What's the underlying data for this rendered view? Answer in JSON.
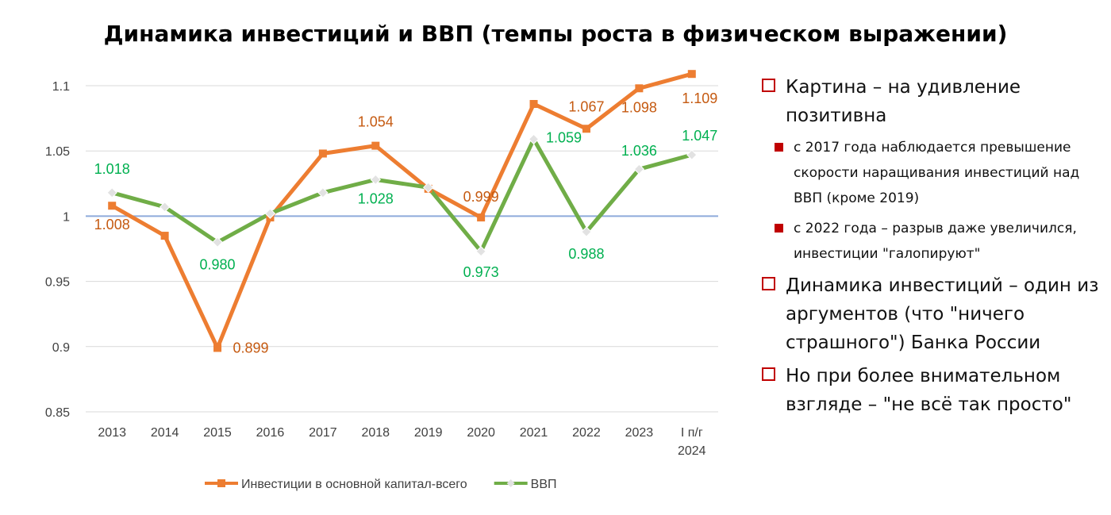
{
  "title": "Динамика инвестиций и ВВП (темпы роста в физическом выражении)",
  "chart_data": {
    "type": "line",
    "title": "Динамика инвестиций и ВВП (темпы роста в физическом выражении)",
    "categories": [
      "2013",
      "2014",
      "2015",
      "2016",
      "2017",
      "2018",
      "2019",
      "2020",
      "2021",
      "2022",
      "2023",
      "I п/г 2024"
    ],
    "ylim": [
      0.85,
      1.1
    ],
    "yticks": [
      "0.85",
      "0.9",
      "0.95",
      "1",
      "1.05",
      "1.1"
    ],
    "grid": true,
    "legend_position": "bottom",
    "series": [
      {
        "name": "Инвестиции в основной капитал-всего",
        "color": "#ed7d31",
        "label_color": "#c55a11",
        "marker": "square",
        "values": [
          1.008,
          0.985,
          0.899,
          0.999,
          1.048,
          1.054,
          1.021,
          0.999,
          1.086,
          1.067,
          1.098,
          1.109
        ],
        "labels": [
          "1.008",
          "",
          "0.899",
          "",
          "",
          "1.054",
          "",
          "0.999",
          "",
          "1.067",
          "1.098",
          "1.109"
        ]
      },
      {
        "name": "ВВП",
        "color": "#70ad47",
        "label_color": "#00b050",
        "marker": "diamond",
        "values": [
          1.018,
          1.007,
          0.98,
          1.002,
          1.018,
          1.028,
          1.022,
          0.973,
          1.059,
          0.988,
          1.036,
          1.047
        ],
        "labels": [
          "1.018",
          "",
          "0.980",
          "",
          "",
          "1.028",
          "",
          "0.973",
          "1.059",
          "0.988",
          "1.036",
          "1.047"
        ]
      }
    ]
  },
  "bullets": [
    {
      "text": "Картина – на удивление позитивна",
      "sub": [
        "с 2017 года наблюдается превышение скорости наращивания инвестиций над ВВП (кроме 2019)",
        "с 2022 года – разрыв даже увеличился, инвестиции \"галопируют\""
      ]
    },
    {
      "text": "Динамика инвестиций – один из аргументов (что \"ничего страшного\") Банка России",
      "sub": []
    },
    {
      "text": "Но при более внимательном взгляде – \"не всё так просто\"",
      "sub": []
    }
  ]
}
